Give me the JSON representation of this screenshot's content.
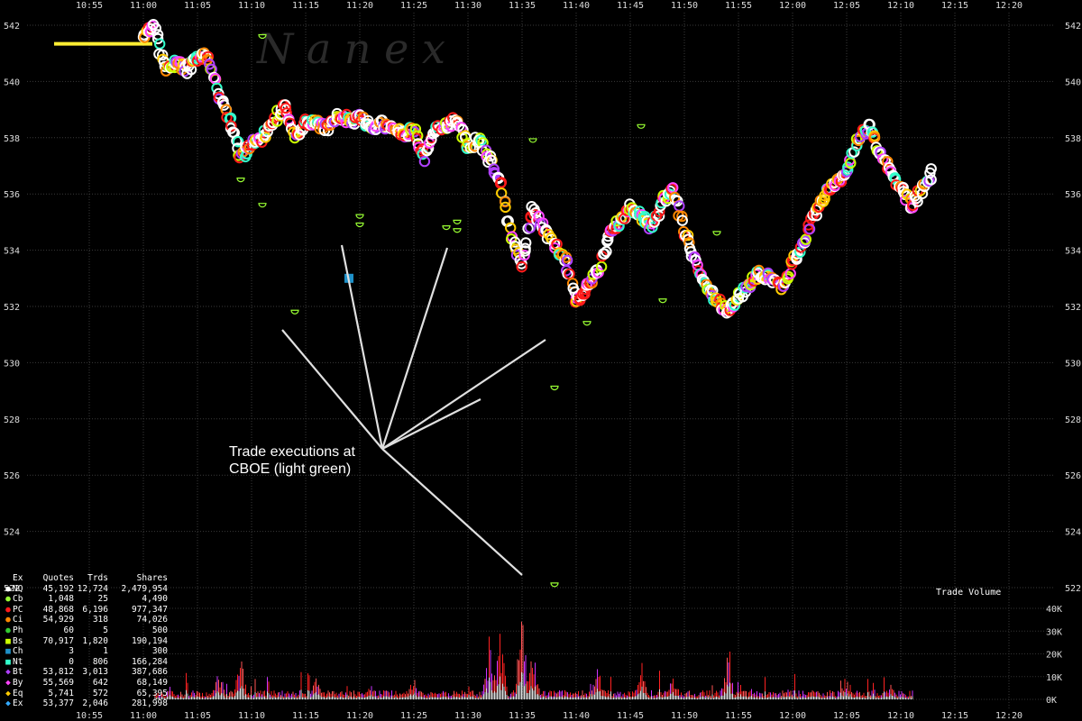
{
  "watermark": "N a n e x",
  "annotation": {
    "line1": "Trade executions at",
    "line2": "CBOE (light green)"
  },
  "volume_label": "Trade Volume",
  "legend": {
    "headers": {
      "ex": "Ex",
      "quotes": "Quotes",
      "trds": "Trds",
      "shares": "Shares"
    },
    "rows": [
      {
        "ex": "NQ",
        "quotes": "45,192",
        "trds": "12,724",
        "shares": "2,479,954",
        "color": "#ffffff",
        "marker": "circle"
      },
      {
        "ex": "Cb",
        "quotes": "1,048",
        "trds": "25",
        "shares": "4,490",
        "color": "#99ff33",
        "marker": "circle"
      },
      {
        "ex": "PC",
        "quotes": "48,868",
        "trds": "6,196",
        "shares": "977,347",
        "color": "#ff1a1a",
        "marker": "circle"
      },
      {
        "ex": "Ci",
        "quotes": "54,929",
        "trds": "318",
        "shares": "74,026",
        "color": "#ff8800",
        "marker": "circle"
      },
      {
        "ex": "Ph",
        "quotes": "60",
        "trds": "5",
        "shares": "500",
        "color": "#33cc33",
        "marker": "circle"
      },
      {
        "ex": "Bs",
        "quotes": "70,917",
        "trds": "1,820",
        "shares": "190,194",
        "color": "#ccff00",
        "marker": "square"
      },
      {
        "ex": "Ch",
        "quotes": "3",
        "trds": "1",
        "shares": "300",
        "color": "#1e90c8",
        "marker": "square"
      },
      {
        "ex": "Nt",
        "quotes": "0",
        "trds": "806",
        "shares": "166,284",
        "color": "#33ffcc",
        "marker": "square"
      },
      {
        "ex": "Bt",
        "quotes": "53,812",
        "trds": "3,013",
        "shares": "387,686",
        "color": "#b040ff",
        "marker": "diamond"
      },
      {
        "ex": "By",
        "quotes": "55,569",
        "trds": "642",
        "shares": "68,149",
        "color": "#ff44ff",
        "marker": "diamond"
      },
      {
        "ex": "Eq",
        "quotes": "5,741",
        "trds": "572",
        "shares": "65,395",
        "color": "#ffcc00",
        "marker": "diamond"
      },
      {
        "ex": "Ex",
        "quotes": "53,377",
        "trds": "2,046",
        "shares": "281,998",
        "color": "#33aaff",
        "marker": "diamond"
      }
    ]
  },
  "chart_data": {
    "type": "scatter",
    "x_unit": "time (HH:MM)",
    "x_ticks": [
      "10:55",
      "11:00",
      "11:05",
      "11:10",
      "11:15",
      "11:20",
      "11:25",
      "11:30",
      "11:35",
      "11:40",
      "11:45",
      "11:50",
      "11:55",
      "12:00",
      "12:05",
      "12:10",
      "12:15",
      "12:20"
    ],
    "y_ticks": [
      542,
      540,
      538,
      536,
      534,
      532,
      530,
      528,
      526,
      524,
      522
    ],
    "ylim": [
      521.8,
      542.4
    ],
    "grid": true,
    "reference_line": {
      "y": 541.5,
      "from": "10:55",
      "to": "11:00",
      "color": "#ffee33"
    },
    "price_path": [
      [
        "11:00",
        541.6
      ],
      [
        "11:01",
        542.0
      ],
      [
        "11:02",
        540.4
      ],
      [
        "11:03",
        540.7
      ],
      [
        "11:04",
        540.4
      ],
      [
        "11:05",
        540.8
      ],
      [
        "11:06",
        540.9
      ],
      [
        "11:07",
        539.5
      ],
      [
        "11:08",
        538.6
      ],
      [
        "11:09",
        537.3
      ],
      [
        "11:10",
        537.8
      ],
      [
        "11:11",
        538.0
      ],
      [
        "11:12",
        538.5
      ],
      [
        "11:13",
        539.2
      ],
      [
        "11:14",
        538.0
      ],
      [
        "11:15",
        538.5
      ],
      [
        "11:16",
        538.6
      ],
      [
        "11:17",
        538.3
      ],
      [
        "11:18",
        538.8
      ],
      [
        "11:19",
        538.6
      ],
      [
        "11:20",
        538.7
      ],
      [
        "11:21",
        538.4
      ],
      [
        "11:22",
        538.5
      ],
      [
        "11:23",
        538.3
      ],
      [
        "11:24",
        538.1
      ],
      [
        "11:25",
        538.3
      ],
      [
        "11:26",
        537.3
      ],
      [
        "11:27",
        538.3
      ],
      [
        "11:28",
        538.4
      ],
      [
        "11:29",
        538.7
      ],
      [
        "11:30",
        537.7
      ],
      [
        "11:31",
        537.9
      ],
      [
        "11:32",
        537.2
      ],
      [
        "11:33",
        536.5
      ],
      [
        "11:34",
        534.5
      ],
      [
        "11:35",
        533.5
      ],
      [
        "11:36",
        535.5
      ],
      [
        "11:37",
        534.8
      ],
      [
        "11:38",
        534.2
      ],
      [
        "11:39",
        533.7
      ],
      [
        "11:40",
        532.2
      ],
      [
        "11:41",
        532.6
      ],
      [
        "11:42",
        533.2
      ],
      [
        "11:43",
        534.5
      ],
      [
        "11:44",
        535.0
      ],
      [
        "11:45",
        535.5
      ],
      [
        "11:46",
        535.2
      ],
      [
        "11:47",
        534.8
      ],
      [
        "11:48",
        535.8
      ],
      [
        "11:49",
        536.1
      ],
      [
        "11:50",
        534.6
      ],
      [
        "11:51",
        533.6
      ],
      [
        "11:52",
        532.8
      ],
      [
        "11:53",
        532.2
      ],
      [
        "11:54",
        531.8
      ],
      [
        "11:55",
        532.3
      ],
      [
        "11:56",
        532.8
      ],
      [
        "11:57",
        533.2
      ],
      [
        "11:58",
        533.0
      ],
      [
        "11:59",
        532.6
      ],
      [
        "12:00",
        533.5
      ],
      [
        "12:01",
        534.2
      ],
      [
        "12:02",
        535.2
      ],
      [
        "12:03",
        536.0
      ],
      [
        "12:04",
        536.3
      ],
      [
        "12:05",
        536.8
      ],
      [
        "12:06",
        537.8
      ],
      [
        "12:07",
        538.4
      ],
      [
        "12:08",
        537.6
      ],
      [
        "12:09",
        536.8
      ],
      [
        "12:10",
        536.3
      ],
      [
        "12:11",
        535.6
      ],
      [
        "12:12",
        536.2
      ],
      [
        "12:13",
        536.8
      ]
    ],
    "cboe_trades": [
      [
        "11:11",
        541.6
      ],
      [
        "11:09",
        536.5
      ],
      [
        "11:11",
        535.6
      ],
      [
        "11:14",
        531.8
      ],
      [
        "11:20",
        535.2
      ],
      [
        "11:20",
        534.9
      ],
      [
        "11:28",
        534.8
      ],
      [
        "11:29",
        535.0
      ],
      [
        "11:29",
        534.7
      ],
      [
        "11:36",
        537.9
      ],
      [
        "11:38",
        529.1
      ],
      [
        "11:41",
        531.4
      ],
      [
        "11:46",
        538.4
      ],
      [
        "11:48",
        532.2
      ],
      [
        "11:53",
        534.6
      ],
      [
        "11:38",
        522.1
      ]
    ],
    "other_markers": [
      {
        "time": "11:19",
        "price": 533.0,
        "color": "#1e90c8",
        "marker": "square"
      }
    ],
    "volume": {
      "y_ticks": [
        "40K",
        "30K",
        "20K",
        "10K",
        "0K"
      ],
      "y_values": [
        40000,
        30000,
        20000,
        10000,
        0
      ],
      "peaks": [
        [
          "11:07",
          16000
        ],
        [
          "11:09",
          23000
        ],
        [
          "11:16",
          10000
        ],
        [
          "11:21",
          8000
        ],
        [
          "11:25",
          11000
        ],
        [
          "11:32",
          30000
        ],
        [
          "11:33",
          34000
        ],
        [
          "11:35",
          42000
        ],
        [
          "11:36",
          25000
        ],
        [
          "11:42",
          22000
        ],
        [
          "11:46",
          21000
        ],
        [
          "11:49",
          14000
        ],
        [
          "11:54",
          20000
        ],
        [
          "12:05",
          12000
        ],
        [
          "12:09",
          9000
        ]
      ]
    }
  }
}
